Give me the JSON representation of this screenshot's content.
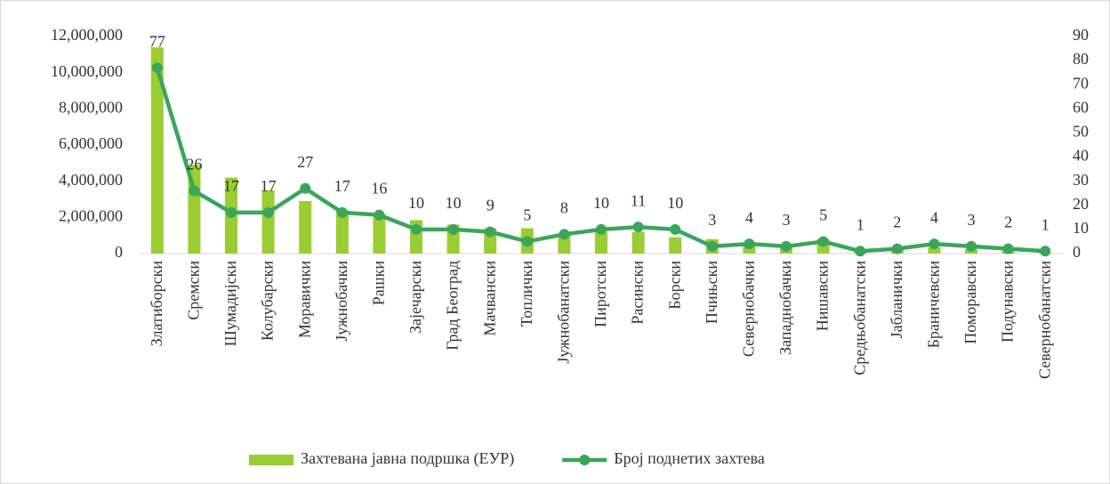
{
  "chart_data": {
    "type": "bar-line",
    "categories": [
      "Златиборски",
      "Сремски",
      "Шумадијски",
      "Колубарски",
      "Моравички",
      "Јужнобачки",
      "Рашки",
      "Зајечарски",
      "Град Београд",
      "Мачвански",
      "Топлички",
      "Јужнобанатски",
      "Пиротски",
      "Расински",
      "Борски",
      "Пчињски",
      "Севернобачки",
      "Западнобачки",
      "Нишавски",
      "Средњобанатски",
      "Јабланички",
      "Браничевски",
      "Поморавски",
      "Подунавски",
      "Севернобанатски"
    ],
    "series": [
      {
        "name": "Захтевана јавна подршка (ЕУР)",
        "color": "#9acd32",
        "type": "bar",
        "values": [
          11400000,
          4900000,
          4200000,
          3500000,
          2900000,
          2400000,
          2200000,
          1850000,
          1600000,
          1400000,
          1400000,
          1100000,
          1200000,
          1200000,
          900000,
          800000,
          600000,
          500000,
          800000,
          150000,
          200000,
          350000,
          250000,
          150000,
          50000
        ]
      },
      {
        "name": "Број поднетих захтева",
        "color": "#3ba55c",
        "type": "line",
        "axis": "y2",
        "values": [
          77,
          26,
          17,
          17,
          27,
          17,
          16,
          10,
          10,
          9,
          5,
          8,
          10,
          11,
          10,
          3,
          4,
          3,
          5,
          1,
          2,
          4,
          3,
          2,
          1
        ]
      }
    ],
    "ylim": [
      0,
      12000000
    ],
    "yticks": [
      0,
      {
        "value": 2000000,
        "label": "2,000,000"
      },
      {
        "value": 4000000,
        "label": "4,000,000"
      },
      {
        "value": 6000000,
        "label": "6,000,000"
      },
      {
        "value": 8000000,
        "label": "8,000,000"
      },
      {
        "value": 10000000,
        "label": "10,000,000"
      },
      {
        "value": 12000000,
        "label": "12,000,000"
      }
    ],
    "y2lim": [
      0,
      90
    ],
    "y2ticks": [
      0,
      10,
      20,
      30,
      40,
      50,
      60,
      70,
      80,
      90
    ],
    "legend": "bottom"
  }
}
